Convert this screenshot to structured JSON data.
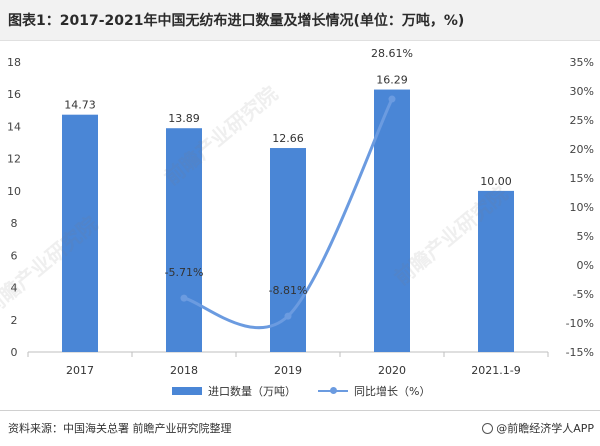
{
  "title": "图表1：2017-2021年中国无纺布进口数量及增长情况(单位：万吨，%)",
  "chart_data": {
    "type": "bar",
    "categories": [
      "2017",
      "2018",
      "2019",
      "2020",
      "2021.1-9"
    ],
    "series": [
      {
        "name": "进口数量（万吨）",
        "type": "bar",
        "axis": "left",
        "values": [
          14.73,
          13.89,
          12.66,
          16.29,
          10.0
        ],
        "labels": [
          "14.73",
          "13.89",
          "12.66",
          "16.29",
          "10.00"
        ]
      },
      {
        "name": "同比增长（%）",
        "type": "line",
        "axis": "right",
        "values": [
          null,
          -5.71,
          -8.81,
          28.61,
          null
        ],
        "labels": [
          "",
          "-5.71%",
          "-8.81%",
          "28.61%",
          ""
        ]
      }
    ],
    "ylim_left": [
      0,
      18
    ],
    "ylim_right": [
      -15,
      35
    ],
    "left_ticks": [
      "0",
      "2",
      "4",
      "6",
      "8",
      "10",
      "12",
      "14",
      "16",
      "18"
    ],
    "right_ticks": [
      "-15%",
      "-10%",
      "-5%",
      "0%",
      "5%",
      "10%",
      "15%",
      "20%",
      "25%",
      "30%",
      "35%"
    ],
    "grid": false,
    "legend_position": "bottom",
    "colors": {
      "bar": "#4a86d6",
      "line": "#6b9be0"
    }
  },
  "legend": {
    "bar_label": "进口数量（万吨）",
    "line_label": "同比增长（%）"
  },
  "footer": {
    "source": "资料来源：中国海关总署 前瞻产业研究院整理",
    "brand": "@前瞻经济学人APP"
  },
  "watermark": "前瞻产业研究院"
}
